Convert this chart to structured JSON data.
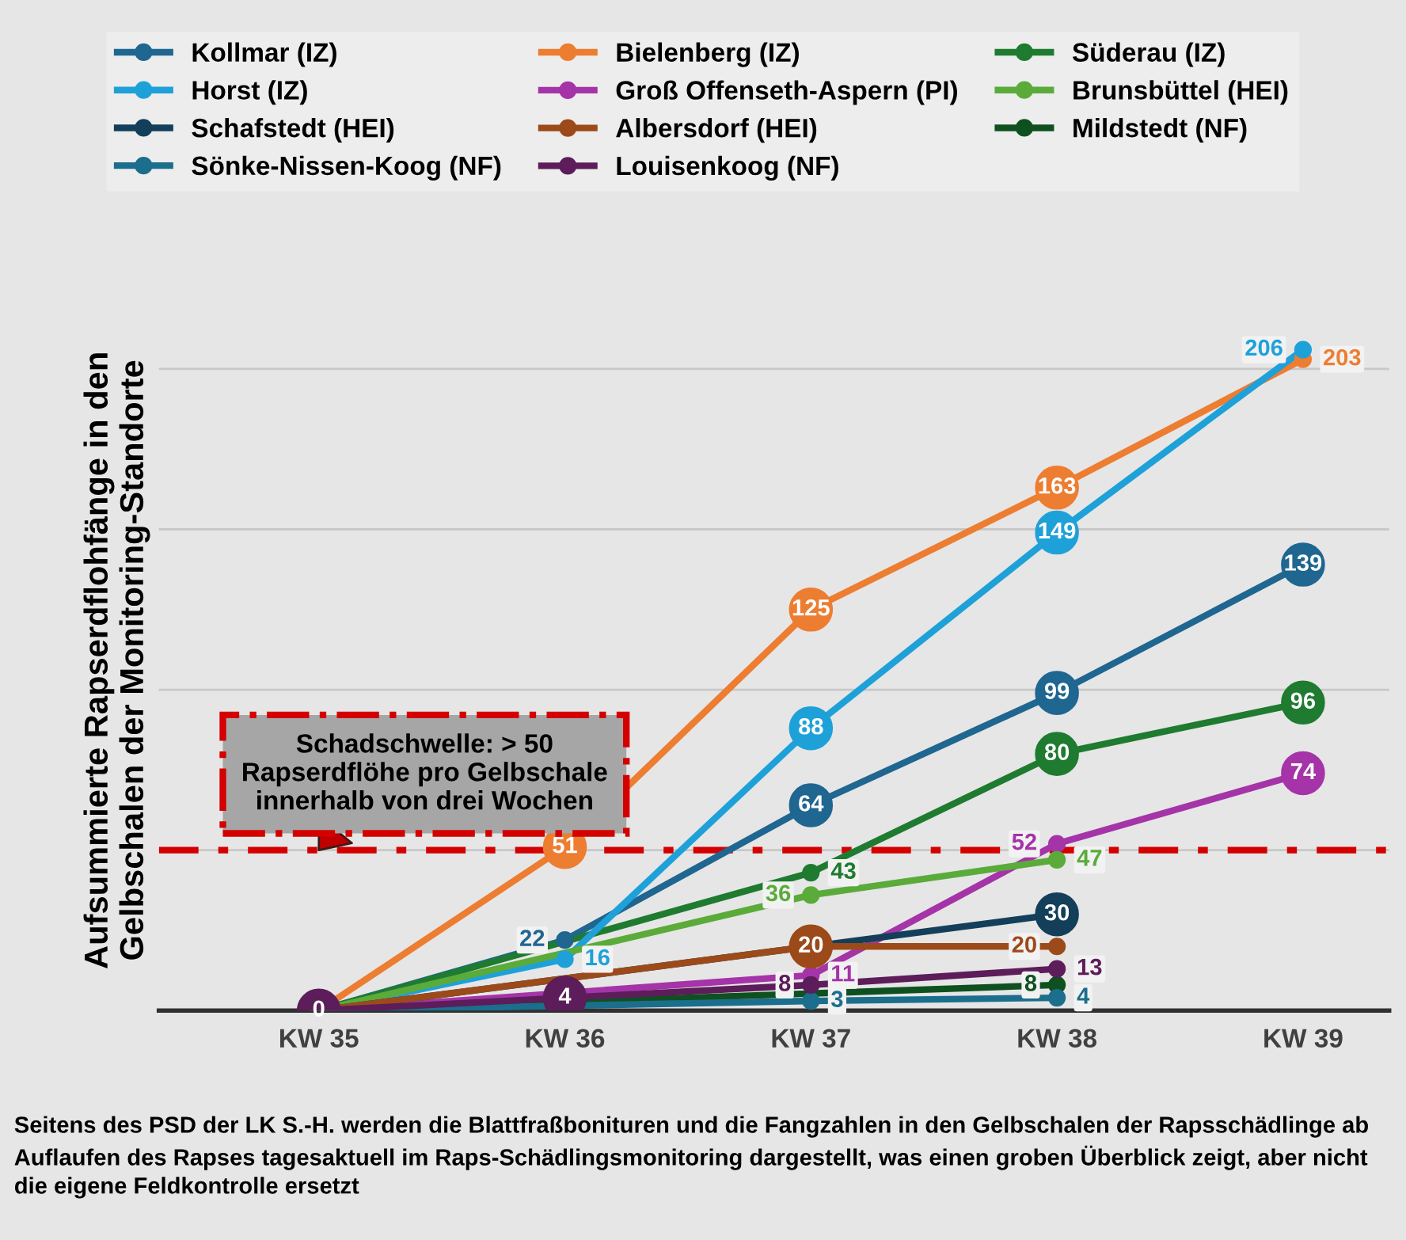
{
  "chart_data": {
    "type": "line",
    "ylabel": "Aufsummierte Rapserdflohfänge in den\nGelbschalen der Monitoring-Standorte",
    "categories": [
      "KW 35",
      "KW 36",
      "KW 37",
      "KW 38",
      "KW 39"
    ],
    "series": [
      {
        "name": "Kollmar (IZ)",
        "color": "#1f6691",
        "values": [
          0,
          22,
          64,
          99,
          139
        ],
        "value_labels": [
          null,
          "22",
          "64",
          "99",
          "139"
        ]
      },
      {
        "name": "Bielenberg (IZ)",
        "color": "#ed7d31",
        "values": [
          0,
          51,
          125,
          163,
          203
        ],
        "value_labels": [
          null,
          "51",
          "125",
          "163",
          "203"
        ]
      },
      {
        "name": "Süderau (IZ)",
        "color": "#1e7b30",
        "values": [
          0,
          null,
          43,
          80,
          96
        ],
        "value_labels": [
          null,
          null,
          "43",
          "80",
          "96"
        ]
      },
      {
        "name": "Horst (IZ)",
        "color": "#1ea1d9",
        "values": [
          0,
          16,
          88,
          149,
          206
        ],
        "value_labels": [
          null,
          "16",
          "88",
          "149",
          "206"
        ]
      },
      {
        "name": "Groß Offenseth-Aspern (PI)",
        "color": "#a534a8",
        "values": [
          0,
          null,
          11,
          52,
          74
        ],
        "value_labels": [
          null,
          null,
          "11",
          "52",
          "74"
        ]
      },
      {
        "name": "Brunsbüttel (HEI)",
        "color": "#5aab3a",
        "values": [
          0,
          null,
          36,
          47,
          null
        ],
        "value_labels": [
          null,
          null,
          "36",
          "47",
          null
        ]
      },
      {
        "name": "Schafstedt (HEI)",
        "color": "#133f5a",
        "values": [
          0,
          null,
          null,
          30,
          null
        ],
        "value_labels": [
          null,
          null,
          null,
          "30",
          null
        ]
      },
      {
        "name": "Albersdorf (HEI)",
        "color": "#9c4a1a",
        "values": [
          0,
          null,
          20,
          20,
          null
        ],
        "value_labels": [
          null,
          null,
          "20",
          "20",
          null
        ]
      },
      {
        "name": "Mildstedt (NF)",
        "color": "#0f5020",
        "values": [
          0,
          null,
          null,
          8,
          null
        ],
        "value_labels": [
          null,
          null,
          null,
          "8",
          null
        ]
      },
      {
        "name": "Sönke-Nissen-Koog (NF)",
        "color": "#1b6e8c",
        "values": [
          0,
          null,
          3,
          4,
          null
        ],
        "value_labels": [
          null,
          null,
          "3",
          "4",
          null
        ]
      },
      {
        "name": "Louisenkoog (NF)",
        "color": "#5c1d5a",
        "values": [
          0,
          4,
          8,
          13,
          null
        ],
        "value_labels": [
          "0",
          "4",
          "8",
          "13",
          null
        ]
      }
    ],
    "yticks": [
      {
        "value": 50,
        "label": null
      },
      {
        "value": 100,
        "label": null
      },
      {
        "value": 150,
        "label": null
      },
      {
        "value": 200,
        "label": null
      }
    ],
    "grid": "y",
    "tick_labels": "x",
    "marker": "circle",
    "line_style": "solid",
    "legend": "top",
    "ref_lines": [
      {
        "axis": "y",
        "value": 50,
        "label": "Schadschwelle: > 50\nRapserdflöhe pro Gelbschale\ninnerhalb von drei Wochen",
        "color": "#d40000",
        "line_style": "dashdot"
      }
    ],
    "annotations": [
      "Seitens des PSD der LK S.-H. werden die Blattfraßbonituren und die Fangzahlen in den Gelbschalen der Rapsschädlinge ab Auflaufen des Rapses tagesaktuell im Raps-Schädlingsmonitoring dargestellt, was einen groben Überblick zeigt, aber nicht die eigene Feldkontrolle ersetzt"
    ]
  }
}
